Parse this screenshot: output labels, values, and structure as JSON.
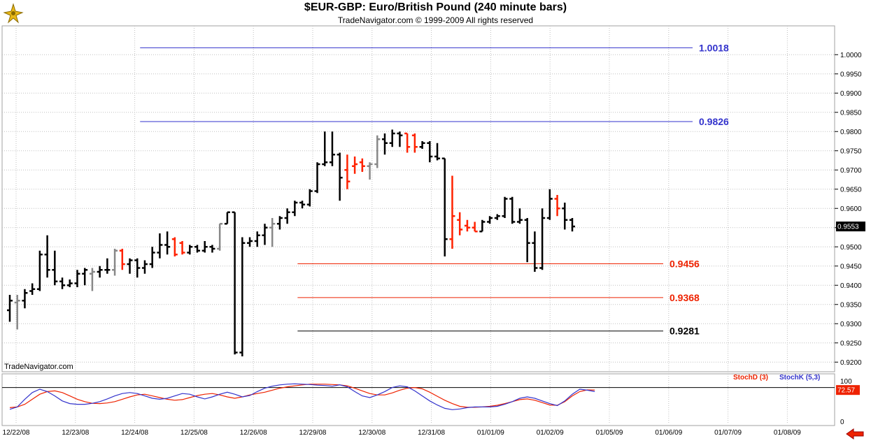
{
  "header": {
    "title": "$EUR-GBP:  Euro/British Pound  (240 minute bars)",
    "subtitle": "TradeNavigator.com © 1999-2009 All rights reserved"
  },
  "watermark": "TradeNavigator.com",
  "colors": {
    "bar_up": "#000000",
    "bar_down": "#ff2200",
    "bar_neutral": "#888888",
    "level_blue": "#3333cc",
    "level_red": "#ee2200",
    "level_black": "#000000",
    "stoch_d": "#ee2200",
    "stoch_k": "#3333cc",
    "grid": "#c0c0c0"
  },
  "icons": {
    "logo": "trading-navigator-logo-icon",
    "nav": "left-arrow-icon"
  },
  "chart_data": [
    {
      "type": "ohlc",
      "title": "$EUR-GBP:  Euro/British Pound  (240 minute bars)",
      "ylim": [
        0.9175,
        1.0075
      ],
      "y_ticks": [
        "0.9200",
        "0.9250",
        "0.9300",
        "0.9350",
        "0.9400",
        "0.9450",
        "0.9500",
        "0.9550",
        "0.9600",
        "0.9650",
        "0.9700",
        "0.9750",
        "0.9800",
        "0.9850",
        "0.9900",
        "0.9950",
        "1.0000"
      ],
      "x_tick_labels": [
        "12/22/08",
        "12/23/08",
        "12/24/08",
        "12/25/08",
        "12/26/08",
        "12/29/08",
        "12/30/08",
        "12/31/08",
        "01/01/09",
        "01/02/09",
        "01/05/09",
        "01/06/09",
        "01/07/09",
        "01/08/09"
      ],
      "last_price": "0.9553",
      "grid": true,
      "levels": [
        {
          "value": 1.0018,
          "label": "1.0018",
          "color": "#3333cc",
          "from_bar": 17
        },
        {
          "value": 0.9826,
          "label": "0.9826",
          "color": "#3333cc",
          "from_bar": 17
        },
        {
          "value": 0.9456,
          "label": "0.9456",
          "color": "#ee2200",
          "from_bar": 38
        },
        {
          "value": 0.9368,
          "label": "0.9368",
          "color": "#ee2200",
          "from_bar": 38
        },
        {
          "value": 0.9281,
          "label": "0.9281",
          "color": "#000000",
          "from_bar": 38
        }
      ],
      "bars": [
        {
          "o": 0.9335,
          "h": 0.9375,
          "l": 0.9305,
          "c": 0.936,
          "k": "u"
        },
        {
          "o": 0.9355,
          "h": 0.9375,
          "l": 0.9285,
          "c": 0.936,
          "k": "n"
        },
        {
          "o": 0.936,
          "h": 0.939,
          "l": 0.934,
          "c": 0.938,
          "k": "u"
        },
        {
          "o": 0.9385,
          "h": 0.9405,
          "l": 0.9375,
          "c": 0.939,
          "k": "u"
        },
        {
          "o": 0.939,
          "h": 0.949,
          "l": 0.9385,
          "c": 0.948,
          "k": "u"
        },
        {
          "o": 0.948,
          "h": 0.953,
          "l": 0.942,
          "c": 0.944,
          "k": "u"
        },
        {
          "o": 0.944,
          "h": 0.949,
          "l": 0.94,
          "c": 0.941,
          "k": "u"
        },
        {
          "o": 0.941,
          "h": 0.942,
          "l": 0.939,
          "c": 0.94,
          "k": "u"
        },
        {
          "o": 0.94,
          "h": 0.9415,
          "l": 0.9395,
          "c": 0.9405,
          "k": "u"
        },
        {
          "o": 0.9405,
          "h": 0.944,
          "l": 0.9395,
          "c": 0.943,
          "k": "u"
        },
        {
          "o": 0.943,
          "h": 0.9445,
          "l": 0.94,
          "c": 0.944,
          "k": "u"
        },
        {
          "o": 0.943,
          "h": 0.9445,
          "l": 0.9385,
          "c": 0.9435,
          "k": "n"
        },
        {
          "o": 0.9435,
          "h": 0.945,
          "l": 0.942,
          "c": 0.944,
          "k": "u"
        },
        {
          "o": 0.944,
          "h": 0.947,
          "l": 0.943,
          "c": 0.944,
          "k": "u"
        },
        {
          "o": 0.944,
          "h": 0.9495,
          "l": 0.9425,
          "c": 0.949,
          "k": "n"
        },
        {
          "o": 0.949,
          "h": 0.9495,
          "l": 0.944,
          "c": 0.9455,
          "k": "d"
        },
        {
          "o": 0.9455,
          "h": 0.947,
          "l": 0.943,
          "c": 0.9465,
          "k": "u"
        },
        {
          "o": 0.9465,
          "h": 0.947,
          "l": 0.942,
          "c": 0.9445,
          "k": "u"
        },
        {
          "o": 0.9445,
          "h": 0.9465,
          "l": 0.943,
          "c": 0.9455,
          "k": "u"
        },
        {
          "o": 0.9455,
          "h": 0.95,
          "l": 0.9445,
          "c": 0.9485,
          "k": "u"
        },
        {
          "o": 0.9485,
          "h": 0.9535,
          "l": 0.947,
          "c": 0.9505,
          "k": "u"
        },
        {
          "o": 0.9505,
          "h": 0.954,
          "l": 0.948,
          "c": 0.95,
          "k": "u"
        },
        {
          "o": 0.952,
          "h": 0.9525,
          "l": 0.9475,
          "c": 0.948,
          "k": "d"
        },
        {
          "o": 0.951,
          "h": 0.9515,
          "l": 0.948,
          "c": 0.9485,
          "k": "d"
        },
        {
          "o": 0.9485,
          "h": 0.9505,
          "l": 0.948,
          "c": 0.95,
          "k": "u"
        },
        {
          "o": 0.95,
          "h": 0.9505,
          "l": 0.9485,
          "c": 0.949,
          "k": "u"
        },
        {
          "o": 0.949,
          "h": 0.9515,
          "l": 0.9485,
          "c": 0.95,
          "k": "u"
        },
        {
          "o": 0.95,
          "h": 0.9505,
          "l": 0.9485,
          "c": 0.9495,
          "k": "u"
        },
        {
          "o": 0.9495,
          "h": 0.956,
          "l": 0.949,
          "c": 0.956,
          "k": "n"
        },
        {
          "o": 0.956,
          "h": 0.959,
          "l": 0.956,
          "c": 0.959,
          "k": "u"
        },
        {
          "o": 0.959,
          "h": 0.959,
          "l": 0.922,
          "c": 0.9225,
          "k": "u"
        },
        {
          "o": 0.9225,
          "h": 0.9525,
          "l": 0.9215,
          "c": 0.951,
          "k": "u"
        },
        {
          "o": 0.951,
          "h": 0.9525,
          "l": 0.95,
          "c": 0.9515,
          "k": "u"
        },
        {
          "o": 0.9515,
          "h": 0.954,
          "l": 0.95,
          "c": 0.953,
          "k": "u"
        },
        {
          "o": 0.953,
          "h": 0.956,
          "l": 0.9505,
          "c": 0.955,
          "k": "u"
        },
        {
          "o": 0.955,
          "h": 0.9575,
          "l": 0.95,
          "c": 0.956,
          "k": "n"
        },
        {
          "o": 0.956,
          "h": 0.958,
          "l": 0.9545,
          "c": 0.9575,
          "k": "u"
        },
        {
          "o": 0.9575,
          "h": 0.96,
          "l": 0.956,
          "c": 0.959,
          "k": "u"
        },
        {
          "o": 0.959,
          "h": 0.962,
          "l": 0.958,
          "c": 0.9615,
          "k": "u"
        },
        {
          "o": 0.9615,
          "h": 0.962,
          "l": 0.96,
          "c": 0.961,
          "k": "u"
        },
        {
          "o": 0.961,
          "h": 0.965,
          "l": 0.9605,
          "c": 0.9645,
          "k": "u"
        },
        {
          "o": 0.9645,
          "h": 0.972,
          "l": 0.964,
          "c": 0.9715,
          "k": "u"
        },
        {
          "o": 0.9715,
          "h": 0.98,
          "l": 0.971,
          "c": 0.972,
          "k": "u"
        },
        {
          "o": 0.972,
          "h": 0.98,
          "l": 0.971,
          "c": 0.974,
          "k": "u"
        },
        {
          "o": 0.974,
          "h": 0.9745,
          "l": 0.962,
          "c": 0.968,
          "k": "u"
        },
        {
          "o": 0.97,
          "h": 0.974,
          "l": 0.965,
          "c": 0.967,
          "k": "d"
        },
        {
          "o": 0.971,
          "h": 0.9735,
          "l": 0.969,
          "c": 0.9715,
          "k": "d"
        },
        {
          "o": 0.972,
          "h": 0.973,
          "l": 0.9695,
          "c": 0.971,
          "k": "d"
        },
        {
          "o": 0.971,
          "h": 0.972,
          "l": 0.9675,
          "c": 0.9715,
          "k": "n"
        },
        {
          "o": 0.9715,
          "h": 0.979,
          "l": 0.9705,
          "c": 0.978,
          "k": "n"
        },
        {
          "o": 0.978,
          "h": 0.9795,
          "l": 0.974,
          "c": 0.977,
          "k": "u"
        },
        {
          "o": 0.977,
          "h": 0.9805,
          "l": 0.976,
          "c": 0.9795,
          "k": "u"
        },
        {
          "o": 0.9795,
          "h": 0.98,
          "l": 0.976,
          "c": 0.979,
          "k": "u"
        },
        {
          "o": 0.9795,
          "h": 0.9795,
          "l": 0.9745,
          "c": 0.976,
          "k": "d"
        },
        {
          "o": 0.979,
          "h": 0.9795,
          "l": 0.9745,
          "c": 0.976,
          "k": "d"
        },
        {
          "o": 0.976,
          "h": 0.9775,
          "l": 0.9755,
          "c": 0.977,
          "k": "u"
        },
        {
          "o": 0.977,
          "h": 0.9775,
          "l": 0.972,
          "c": 0.9735,
          "k": "u"
        },
        {
          "o": 0.9735,
          "h": 0.977,
          "l": 0.9725,
          "c": 0.973,
          "k": "u"
        },
        {
          "o": 0.973,
          "h": 0.973,
          "l": 0.9475,
          "c": 0.952,
          "k": "u"
        },
        {
          "o": 0.952,
          "h": 0.9685,
          "l": 0.9495,
          "c": 0.958,
          "k": "d"
        },
        {
          "o": 0.957,
          "h": 0.959,
          "l": 0.953,
          "c": 0.9545,
          "k": "d"
        },
        {
          "o": 0.9555,
          "h": 0.957,
          "l": 0.954,
          "c": 0.955,
          "k": "d"
        },
        {
          "o": 0.955,
          "h": 0.9565,
          "l": 0.954,
          "c": 0.954,
          "k": "d"
        },
        {
          "o": 0.954,
          "h": 0.957,
          "l": 0.954,
          "c": 0.9565,
          "k": "u"
        },
        {
          "o": 0.9565,
          "h": 0.958,
          "l": 0.956,
          "c": 0.9575,
          "k": "u"
        },
        {
          "o": 0.9575,
          "h": 0.9585,
          "l": 0.957,
          "c": 0.958,
          "k": "u"
        },
        {
          "o": 0.958,
          "h": 0.963,
          "l": 0.9575,
          "c": 0.9625,
          "k": "u"
        },
        {
          "o": 0.9625,
          "h": 0.963,
          "l": 0.956,
          "c": 0.9565,
          "k": "u"
        },
        {
          "o": 0.9565,
          "h": 0.96,
          "l": 0.956,
          "c": 0.957,
          "k": "u"
        },
        {
          "o": 0.957,
          "h": 0.9575,
          "l": 0.946,
          "c": 0.951,
          "k": "u"
        },
        {
          "o": 0.951,
          "h": 0.954,
          "l": 0.9435,
          "c": 0.9445,
          "k": "u"
        },
        {
          "o": 0.9445,
          "h": 0.96,
          "l": 0.944,
          "c": 0.9575,
          "k": "u"
        },
        {
          "o": 0.9575,
          "h": 0.965,
          "l": 0.957,
          "c": 0.9625,
          "k": "u"
        },
        {
          "o": 0.9625,
          "h": 0.9635,
          "l": 0.958,
          "c": 0.96,
          "k": "d"
        },
        {
          "o": 0.96,
          "h": 0.9615,
          "l": 0.9545,
          "c": 0.957,
          "k": "u"
        },
        {
          "o": 0.957,
          "h": 0.9575,
          "l": 0.954,
          "c": 0.9553,
          "k": "u"
        }
      ]
    },
    {
      "type": "line",
      "title": "Stochastic",
      "ylim": [
        0,
        100
      ],
      "y_ticks": [
        "0",
        "100"
      ],
      "reference_line": 80,
      "last_value": "72.57",
      "series": [
        {
          "name": "StochD (3)",
          "color": "#ee2200",
          "values": [
            20,
            22,
            30,
            45,
            60,
            68,
            70,
            65,
            55,
            45,
            38,
            33,
            32,
            34,
            38,
            45,
            52,
            58,
            60,
            55,
            50,
            45,
            42,
            44,
            50,
            56,
            60,
            62,
            58,
            52,
            48,
            52,
            58,
            62,
            66,
            72,
            78,
            82,
            85,
            88,
            90,
            90,
            90,
            89,
            88,
            85,
            78,
            70,
            62,
            58,
            58,
            64,
            72,
            78,
            80,
            76,
            66,
            54,
            42,
            32,
            24,
            21,
            21,
            22,
            24,
            27,
            32,
            38,
            44,
            46,
            42,
            35,
            28,
            27,
            38,
            55,
            68,
            73,
            72.57
          ]
        },
        {
          "name": "StochK (5,3)",
          "color": "#3333cc",
          "values": [
            15,
            22,
            45,
            65,
            75,
            68,
            55,
            40,
            32,
            30,
            30,
            33,
            38,
            46,
            55,
            62,
            65,
            62,
            55,
            48,
            45,
            48,
            55,
            62,
            60,
            52,
            46,
            52,
            60,
            66,
            60,
            52,
            56,
            68,
            78,
            84,
            88,
            90,
            91,
            90,
            89,
            87,
            86,
            84,
            88,
            82,
            68,
            55,
            50,
            58,
            68,
            80,
            85,
            82,
            70,
            55,
            40,
            28,
            18,
            14,
            16,
            20,
            22,
            22,
            22,
            24,
            30,
            38,
            48,
            52,
            48,
            40,
            32,
            26,
            40,
            60,
            75,
            72,
            68
          ]
        }
      ]
    }
  ]
}
